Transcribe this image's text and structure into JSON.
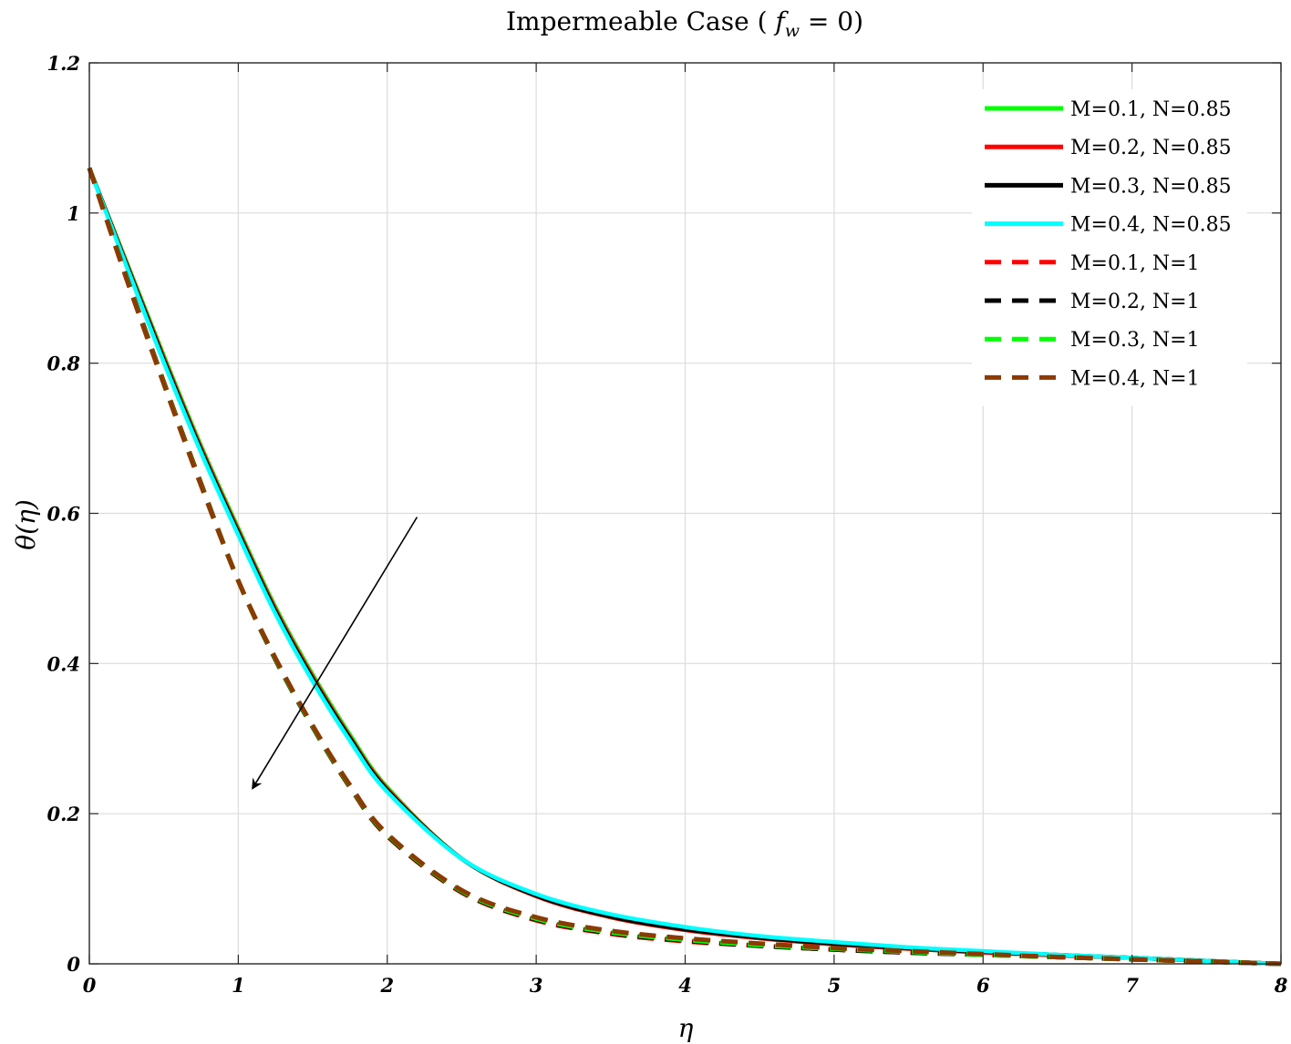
{
  "chart_data": {
    "type": "line",
    "title": "Impermeable Case ( f_w = 0)",
    "title_parts": {
      "before": "Impermeable Case ( ",
      "var": "f",
      "sub": "w",
      "after": " = 0)"
    },
    "xlabel": "η",
    "ylabel": "θ(η)",
    "xlim": [
      0,
      8
    ],
    "ylim": [
      0,
      1.2
    ],
    "grid": true,
    "legend_position": "top-right",
    "x_ticks": [
      "0",
      "1",
      "2",
      "3",
      "4",
      "5",
      "6",
      "7",
      "8"
    ],
    "y_ticks": [
      "0",
      "0.2",
      "0.4",
      "0.6",
      "0.8",
      "1",
      "1.2"
    ],
    "x": [
      0,
      0.25,
      0.5,
      0.75,
      1,
      1.25,
      1.5,
      1.75,
      2,
      2.5,
      3,
      3.5,
      4,
      4.5,
      5,
      5.5,
      6,
      6.5,
      7,
      7.5,
      8
    ],
    "series": [
      {
        "name": "M=0.1, N=0.85",
        "style": "solid",
        "color": "#00ff00",
        "values": [
          1.06,
          0.935,
          0.81,
          0.69,
          0.58,
          0.475,
          0.385,
          0.305,
          0.235,
          0.14,
          0.09,
          0.062,
          0.045,
          0.034,
          0.026,
          0.02,
          0.015,
          0.011,
          0.008,
          0.004,
          0.0
        ]
      },
      {
        "name": "M=0.2, N=0.85",
        "style": "solid",
        "color": "#ff0000",
        "values": [
          1.06,
          0.933,
          0.807,
          0.687,
          0.577,
          0.472,
          0.382,
          0.302,
          0.233,
          0.14,
          0.09,
          0.062,
          0.045,
          0.034,
          0.026,
          0.02,
          0.015,
          0.011,
          0.008,
          0.004,
          0.0
        ]
      },
      {
        "name": "M=0.3, N=0.85",
        "style": "solid",
        "color": "#000000",
        "values": [
          1.06,
          0.931,
          0.804,
          0.684,
          0.574,
          0.469,
          0.379,
          0.3,
          0.231,
          0.14,
          0.091,
          0.063,
          0.046,
          0.035,
          0.027,
          0.021,
          0.016,
          0.012,
          0.008,
          0.004,
          0.0
        ]
      },
      {
        "name": "M=0.4, N=0.85",
        "style": "solid",
        "color": "#00ffff",
        "values": [
          1.06,
          0.929,
          0.801,
          0.681,
          0.571,
          0.466,
          0.376,
          0.297,
          0.229,
          0.14,
          0.093,
          0.066,
          0.049,
          0.037,
          0.029,
          0.022,
          0.017,
          0.012,
          0.008,
          0.004,
          0.0
        ]
      },
      {
        "name": "M=0.1, N=1",
        "style": "dashed",
        "color": "#ff0000",
        "values": [
          1.06,
          0.915,
          0.775,
          0.64,
          0.51,
          0.405,
          0.315,
          0.235,
          0.17,
          0.095,
          0.058,
          0.04,
          0.03,
          0.024,
          0.019,
          0.015,
          0.012,
          0.009,
          0.006,
          0.003,
          0.0
        ]
      },
      {
        "name": "M=0.2, N=1",
        "style": "dashed",
        "color": "#000000",
        "values": [
          1.06,
          0.914,
          0.774,
          0.639,
          0.51,
          0.405,
          0.315,
          0.236,
          0.171,
          0.096,
          0.059,
          0.041,
          0.031,
          0.024,
          0.019,
          0.015,
          0.012,
          0.009,
          0.006,
          0.003,
          0.0
        ]
      },
      {
        "name": "M=0.3, N=1",
        "style": "dashed",
        "color": "#00ff00",
        "values": [
          1.06,
          0.913,
          0.773,
          0.638,
          0.51,
          0.406,
          0.316,
          0.237,
          0.172,
          0.097,
          0.06,
          0.042,
          0.032,
          0.025,
          0.02,
          0.016,
          0.012,
          0.009,
          0.006,
          0.003,
          0.0
        ]
      },
      {
        "name": "M=0.4, N=1",
        "style": "dashed",
        "color": "#8b3a00",
        "values": [
          1.06,
          0.912,
          0.772,
          0.637,
          0.51,
          0.407,
          0.317,
          0.238,
          0.173,
          0.098,
          0.062,
          0.044,
          0.034,
          0.027,
          0.021,
          0.017,
          0.013,
          0.009,
          0.006,
          0.003,
          0.0
        ]
      }
    ],
    "annotation": {
      "type": "arrow",
      "from": [
        2.2,
        0.595
      ],
      "to": [
        1.1,
        0.235
      ]
    }
  }
}
